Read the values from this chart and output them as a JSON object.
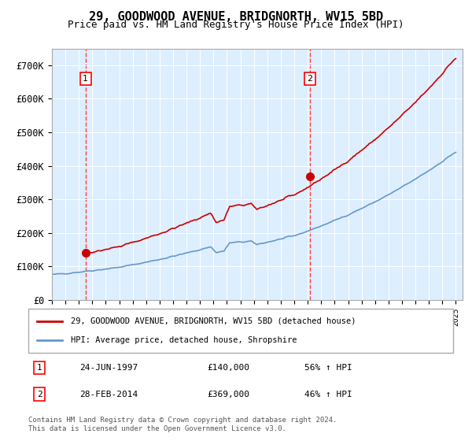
{
  "title": "29, GOODWOOD AVENUE, BRIDGNORTH, WV15 5BD",
  "subtitle": "Price paid vs. HM Land Registry's House Price Index (HPI)",
  "legend_line1": "29, GOODWOOD AVENUE, BRIDGNORTH, WV15 5BD (detached house)",
  "legend_line2": "HPI: Average price, detached house, Shropshire",
  "annotation1_label": "1",
  "annotation1_date": "24-JUN-1997",
  "annotation1_price": 140000,
  "annotation1_pct": "56% ↑ HPI",
  "annotation2_label": "2",
  "annotation2_date": "28-FEB-2014",
  "annotation2_price": 369000,
  "annotation2_pct": "46% ↑ HPI",
  "footnote": "Contains HM Land Registry data © Crown copyright and database right 2024.\nThis data is licensed under the Open Government Licence v3.0.",
  "hpi_color": "#6699cc",
  "price_color": "#cc0000",
  "marker_color": "#cc0000",
  "vline_color": "#ff4444",
  "background_color": "#ddeeff",
  "ylim": [
    0,
    750000
  ],
  "yticks": [
    0,
    100000,
    200000,
    300000,
    400000,
    500000,
    600000,
    700000
  ],
  "ytick_labels": [
    "£0",
    "£100K",
    "£200K",
    "£300K",
    "£400K",
    "£500K",
    "£600K",
    "£700K"
  ],
  "year_start": 1995,
  "year_end": 2025
}
